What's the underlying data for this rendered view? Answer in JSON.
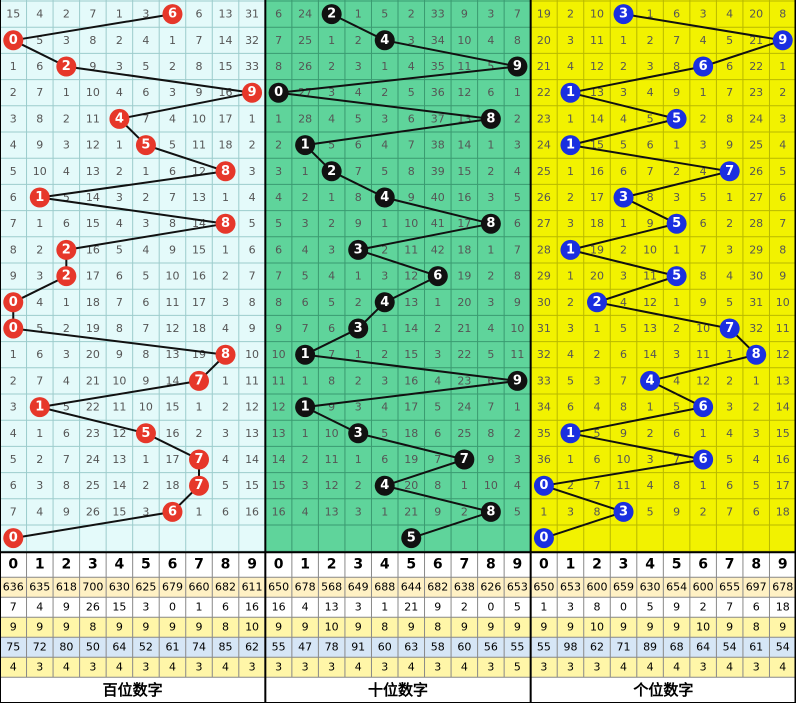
{
  "digits": [
    0,
    1,
    2,
    3,
    4,
    5,
    6,
    7,
    8,
    9
  ],
  "sections": [
    {
      "title": "百位数字",
      "color": "#e6372a",
      "bg": "#e4fafa",
      "grid": "#9ccccc",
      "draws": [
        6,
        0,
        2,
        9,
        4,
        5,
        8,
        1,
        8,
        2,
        2,
        0,
        0,
        8,
        7,
        1,
        5,
        7,
        7,
        6,
        0
      ],
      "omissions": [
        [
          15,
          4,
          2,
          7,
          1,
          3,
          null,
          6,
          13,
          31
        ],
        [
          null,
          5,
          3,
          8,
          2,
          4,
          1,
          7,
          14,
          32
        ],
        [
          1,
          6,
          null,
          9,
          3,
          5,
          2,
          8,
          15,
          33
        ],
        [
          2,
          7,
          1,
          10,
          4,
          6,
          3,
          9,
          16,
          null
        ],
        [
          3,
          8,
          2,
          11,
          null,
          7,
          4,
          10,
          17,
          1
        ],
        [
          4,
          9,
          3,
          12,
          1,
          null,
          5,
          11,
          18,
          2
        ],
        [
          5,
          10,
          4,
          13,
          2,
          1,
          6,
          12,
          null,
          3
        ],
        [
          6,
          null,
          5,
          14,
          3,
          2,
          7,
          13,
          1,
          4
        ],
        [
          7,
          1,
          6,
          15,
          4,
          3,
          8,
          14,
          null,
          5
        ],
        [
          8,
          2,
          null,
          16,
          5,
          4,
          9,
          15,
          1,
          6
        ],
        [
          9,
          3,
          null,
          17,
          6,
          5,
          10,
          16,
          2,
          7
        ],
        [
          null,
          4,
          1,
          18,
          7,
          6,
          11,
          17,
          3,
          8
        ],
        [
          null,
          5,
          2,
          19,
          8,
          7,
          12,
          18,
          4,
          9
        ],
        [
          1,
          6,
          3,
          20,
          9,
          8,
          13,
          19,
          null,
          10
        ],
        [
          2,
          7,
          4,
          21,
          10,
          9,
          14,
          null,
          1,
          11
        ],
        [
          3,
          null,
          5,
          22,
          11,
          10,
          15,
          1,
          2,
          12
        ],
        [
          4,
          1,
          6,
          23,
          12,
          null,
          16,
          2,
          3,
          13
        ],
        [
          5,
          2,
          7,
          24,
          13,
          1,
          17,
          null,
          4,
          14
        ],
        [
          6,
          3,
          8,
          25,
          14,
          2,
          18,
          null,
          5,
          15
        ],
        [
          7,
          4,
          9,
          26,
          15,
          3,
          null,
          1,
          6,
          16
        ],
        [
          null,
          null,
          null,
          null,
          null,
          null,
          null,
          null,
          null,
          null
        ]
      ]
    },
    {
      "title": "十位数字",
      "color": "#111111",
      "bg": "#5fd49b",
      "grid": "#3a9a70",
      "draws": [
        2,
        4,
        9,
        0,
        8,
        1,
        2,
        4,
        8,
        3,
        6,
        4,
        3,
        1,
        9,
        1,
        3,
        7,
        4,
        8,
        5
      ],
      "omissions": [
        [
          6,
          24,
          null,
          1,
          5,
          2,
          33,
          9,
          3,
          7
        ],
        [
          7,
          25,
          1,
          2,
          null,
          3,
          34,
          10,
          4,
          8
        ],
        [
          8,
          26,
          2,
          3,
          1,
          4,
          35,
          11,
          5,
          null
        ],
        [
          null,
          27,
          3,
          4,
          2,
          5,
          36,
          12,
          6,
          1
        ],
        [
          1,
          28,
          4,
          5,
          3,
          6,
          37,
          13,
          null,
          2
        ],
        [
          2,
          null,
          5,
          6,
          4,
          7,
          38,
          14,
          1,
          3
        ],
        [
          3,
          1,
          null,
          7,
          5,
          8,
          39,
          15,
          2,
          4
        ],
        [
          4,
          2,
          1,
          8,
          null,
          9,
          40,
          16,
          3,
          5
        ],
        [
          5,
          3,
          2,
          9,
          1,
          10,
          41,
          17,
          null,
          6
        ],
        [
          6,
          4,
          3,
          null,
          2,
          11,
          42,
          18,
          1,
          7
        ],
        [
          7,
          5,
          4,
          1,
          3,
          12,
          null,
          19,
          2,
          8
        ],
        [
          8,
          6,
          5,
          2,
          null,
          13,
          1,
          20,
          3,
          9
        ],
        [
          9,
          7,
          6,
          null,
          1,
          14,
          2,
          21,
          4,
          10
        ],
        [
          10,
          null,
          7,
          1,
          2,
          15,
          3,
          22,
          5,
          11
        ],
        [
          11,
          1,
          8,
          2,
          3,
          16,
          4,
          23,
          6,
          null
        ],
        [
          12,
          null,
          9,
          3,
          4,
          17,
          5,
          24,
          7,
          1
        ],
        [
          13,
          1,
          10,
          null,
          5,
          18,
          6,
          25,
          8,
          2
        ],
        [
          14,
          2,
          11,
          1,
          6,
          19,
          7,
          null,
          9,
          3
        ],
        [
          15,
          3,
          12,
          2,
          null,
          20,
          8,
          1,
          10,
          4
        ],
        [
          16,
          4,
          13,
          3,
          1,
          21,
          9,
          2,
          null,
          5
        ],
        [
          null,
          null,
          null,
          null,
          null,
          null,
          null,
          null,
          null,
          null
        ]
      ]
    },
    {
      "title": "个位数字",
      "color": "#1a2fe0",
      "bg": "#f2f200",
      "grid": "#b8b800",
      "draws": [
        3,
        9,
        6,
        1,
        5,
        1,
        7,
        3,
        5,
        1,
        5,
        2,
        7,
        8,
        4,
        6,
        1,
        6,
        0,
        3,
        0
      ],
      "omissions": [
        [
          19,
          2,
          10,
          null,
          1,
          6,
          3,
          4,
          20,
          8
        ],
        [
          20,
          3,
          11,
          1,
          2,
          7,
          4,
          5,
          21,
          null
        ],
        [
          21,
          4,
          12,
          2,
          3,
          8,
          null,
          6,
          22,
          1
        ],
        [
          22,
          null,
          13,
          3,
          4,
          9,
          1,
          7,
          23,
          2
        ],
        [
          23,
          1,
          14,
          4,
          5,
          null,
          2,
          8,
          24,
          3
        ],
        [
          24,
          null,
          15,
          5,
          6,
          1,
          3,
          9,
          25,
          4
        ],
        [
          25,
          1,
          16,
          6,
          7,
          2,
          4,
          null,
          26,
          5
        ],
        [
          26,
          2,
          17,
          null,
          8,
          3,
          5,
          1,
          27,
          6
        ],
        [
          27,
          3,
          18,
          1,
          9,
          null,
          6,
          2,
          28,
          7
        ],
        [
          28,
          null,
          19,
          2,
          10,
          1,
          7,
          3,
          29,
          8
        ],
        [
          29,
          1,
          20,
          3,
          11,
          null,
          8,
          4,
          30,
          9
        ],
        [
          30,
          2,
          null,
          4,
          12,
          1,
          9,
          5,
          31,
          10
        ],
        [
          31,
          3,
          1,
          5,
          13,
          2,
          10,
          null,
          32,
          11
        ],
        [
          32,
          4,
          2,
          6,
          14,
          3,
          11,
          1,
          null,
          12
        ],
        [
          33,
          5,
          3,
          7,
          null,
          4,
          12,
          2,
          1,
          13
        ],
        [
          34,
          6,
          4,
          8,
          1,
          5,
          null,
          3,
          2,
          14
        ],
        [
          35,
          null,
          5,
          9,
          2,
          6,
          1,
          4,
          3,
          15
        ],
        [
          36,
          1,
          6,
          10,
          3,
          7,
          null,
          5,
          4,
          16
        ],
        [
          null,
          2,
          7,
          11,
          4,
          8,
          1,
          6,
          5,
          17
        ],
        [
          1,
          3,
          8,
          null,
          5,
          9,
          2,
          7,
          6,
          18
        ],
        [
          null,
          null,
          null,
          null,
          null,
          null,
          null,
          null,
          null,
          null
        ]
      ]
    }
  ],
  "stats": [
    {
      "bg": "#fff1c4",
      "values": [
        636,
        635,
        618,
        700,
        630,
        625,
        679,
        660,
        682,
        611,
        650,
        678,
        568,
        649,
        688,
        644,
        682,
        638,
        626,
        653,
        650,
        653,
        600,
        659,
        630,
        654,
        600,
        655,
        697,
        678
      ]
    },
    {
      "bg": "#ffffff",
      "values": [
        7,
        4,
        9,
        26,
        15,
        3,
        0,
        1,
        6,
        16,
        16,
        4,
        13,
        3,
        1,
        21,
        9,
        2,
        0,
        5,
        1,
        3,
        8,
        0,
        5,
        9,
        2,
        7,
        6,
        18
      ],
      "colors": [
        "#0a2fd0",
        "#0a2fd0",
        "#0a2fd0",
        "#000000",
        "#0a9a20",
        "#0a2fd0",
        "#e00000",
        "#0a2fd0",
        "#0a2fd0",
        "#0a9a20",
        "#0a9a20",
        "#0a2fd0",
        "#0a9a20",
        "#0a2fd0",
        "#0a2fd0",
        "#000000",
        "#e00000",
        "#e00000",
        "#0a2fd0",
        "#0a2fd0",
        "#e00000",
        "#0a2fd0",
        "#e00000",
        "#0a2fd0",
        "#0a2fd0",
        "#0a2fd0",
        "#0a2fd0",
        "#0a2fd0",
        "#e00000",
        "#000000"
      ]
    },
    {
      "bg": "#fff6a8",
      "values": [
        9,
        9,
        9,
        8,
        9,
        9,
        9,
        9,
        8,
        10,
        9,
        9,
        10,
        9,
        8,
        9,
        8,
        9,
        9,
        9,
        9,
        9,
        10,
        9,
        9,
        9,
        10,
        9,
        8,
        9
      ]
    },
    {
      "bg": "#d6e6f6",
      "values": [
        75,
        72,
        80,
        50,
        64,
        52,
        61,
        74,
        85,
        62,
        55,
        47,
        78,
        91,
        60,
        63,
        58,
        60,
        56,
        55,
        55,
        98,
        62,
        71,
        89,
        68,
        64,
        54,
        61,
        54
      ]
    },
    {
      "bg": "#fff6a8",
      "values": [
        4,
        3,
        4,
        3,
        4,
        3,
        4,
        3,
        4,
        3,
        3,
        3,
        3,
        4,
        3,
        4,
        3,
        4,
        3,
        5,
        3,
        3,
        3,
        4,
        4,
        4,
        3,
        4,
        3,
        4
      ]
    }
  ]
}
